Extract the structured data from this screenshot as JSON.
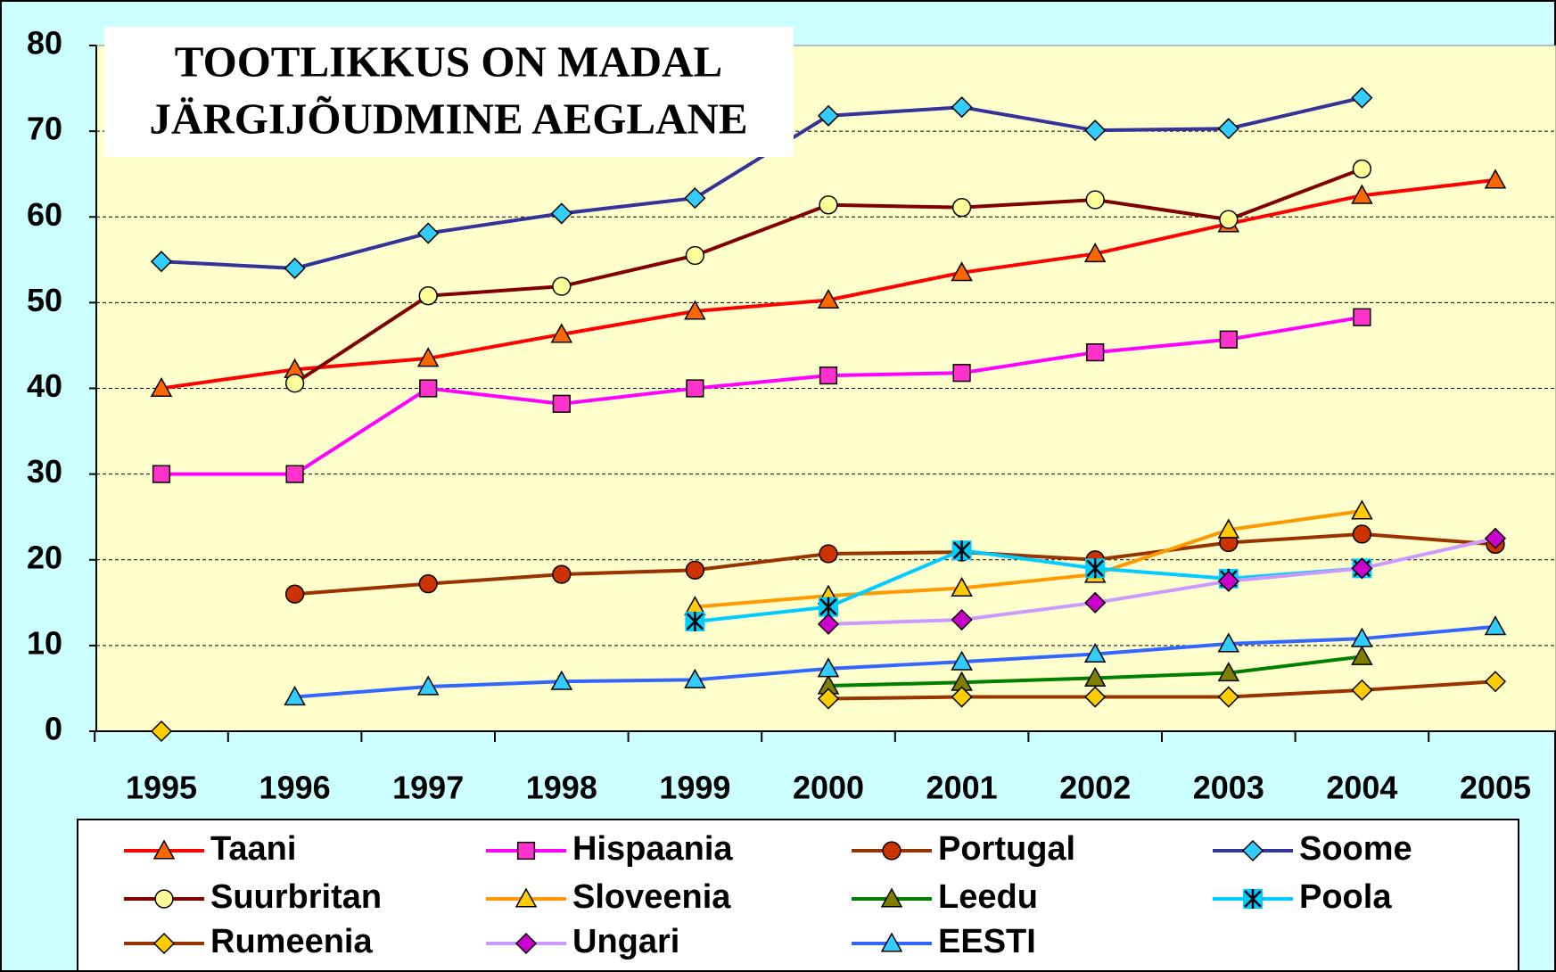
{
  "chart_data": {
    "type": "line",
    "title": "TOOTLIKKUS ON MADAL",
    "subtitle": "JÄRGIJÕUDMINE AEGLANE",
    "categories": [
      "1995",
      "1996",
      "1997",
      "1998",
      "1999",
      "2000",
      "2001",
      "2002",
      "2003",
      "2004",
      "2005"
    ],
    "ylim": [
      0,
      80
    ],
    "yticks": [
      0,
      10,
      20,
      30,
      40,
      50,
      60,
      70,
      80
    ],
    "grid": true,
    "series": [
      {
        "name": "Taani",
        "color": "#ff0000",
        "marker": "triangle",
        "marker_color": "#ff6600",
        "values": [
          40,
          42.2,
          43.5,
          46.3,
          49,
          50.3,
          53.5,
          55.7,
          59.2,
          62.5,
          64.3
        ]
      },
      {
        "name": "Hispaania",
        "color": "#ff00ff",
        "marker": "square",
        "marker_color": "#ff33cc",
        "values": [
          30,
          30,
          40,
          38.2,
          40,
          41.5,
          41.8,
          44.2,
          45.7,
          48.3,
          null
        ]
      },
      {
        "name": "Portugal",
        "color": "#993300",
        "marker": "circle",
        "marker_color": "#cc3300",
        "values": [
          null,
          16,
          17.2,
          18.3,
          18.8,
          20.7,
          20.9,
          20,
          22,
          23,
          21.8
        ]
      },
      {
        "name": "Soome",
        "color": "#333399",
        "marker": "diamond",
        "marker_color": "#33ccff",
        "values": [
          54.8,
          54,
          58.1,
          60.4,
          62.2,
          71.8,
          72.8,
          70.1,
          70.3,
          73.9,
          null
        ]
      },
      {
        "name": "Suurbritan",
        "color": "#800000",
        "marker": "circle",
        "marker_color": "#ffff99",
        "values": [
          null,
          40.6,
          50.8,
          51.9,
          55.5,
          61.4,
          61.1,
          62,
          59.7,
          65.6,
          null
        ]
      },
      {
        "name": "Sloveenia",
        "color": "#ff9900",
        "marker": "triangle",
        "marker_color": "#ffcc00",
        "values": [
          null,
          null,
          null,
          null,
          14.5,
          15.8,
          16.7,
          18.3,
          23.5,
          25.7,
          null
        ]
      },
      {
        "name": "Leedu",
        "color": "#008000",
        "marker": "triangle",
        "marker_color": "#808000",
        "values": [
          null,
          null,
          null,
          null,
          null,
          5.3,
          5.7,
          6.2,
          6.8,
          8.7,
          null
        ]
      },
      {
        "name": "Poola",
        "color": "#00ccff",
        "marker": "star",
        "marker_color": "#00ccff",
        "values": [
          null,
          null,
          null,
          null,
          12.8,
          14.5,
          21.1,
          19,
          17.8,
          19,
          null
        ]
      },
      {
        "name": "Rumeenia",
        "color": "#993300",
        "marker": "diamond",
        "marker_color": "#ffcc00",
        "values": [
          0,
          null,
          null,
          null,
          null,
          3.8,
          4,
          4,
          4,
          4.8,
          5.8
        ]
      },
      {
        "name": "Ungari",
        "color": "#cc99ff",
        "marker": "diamond",
        "marker_color": "#cc00cc",
        "values": [
          null,
          null,
          null,
          null,
          null,
          12.5,
          13,
          15,
          17.5,
          19,
          22.5
        ]
      },
      {
        "name": "EESTI",
        "color": "#3366ff",
        "marker": "triangle",
        "marker_color": "#33ccff",
        "values": [
          null,
          4,
          5.2,
          5.8,
          6,
          7.3,
          8.1,
          9,
          10.2,
          10.8,
          12.2
        ]
      }
    ]
  }
}
